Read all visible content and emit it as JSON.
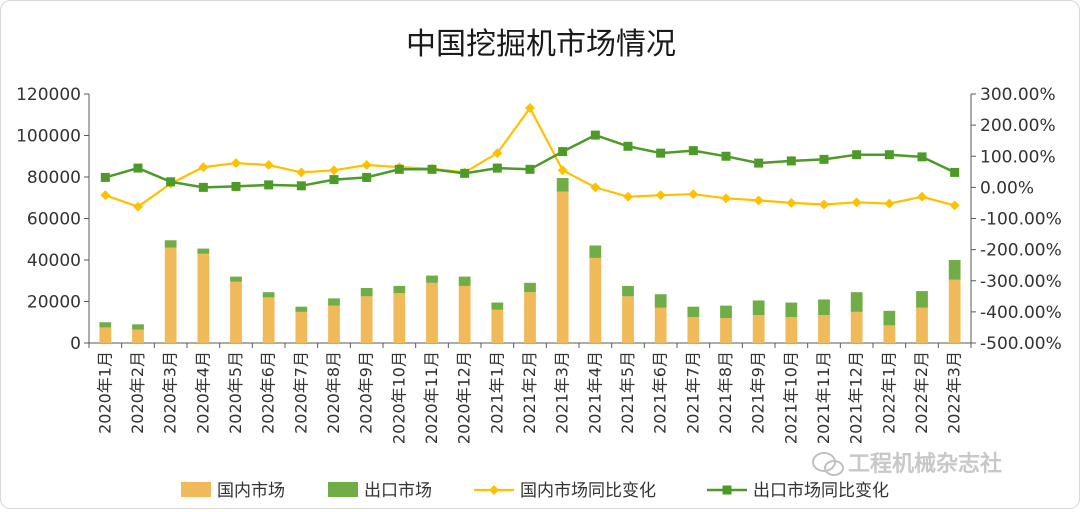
{
  "chart_data": {
    "type": "bar",
    "title": "中国挖掘机市场情况",
    "categories": [
      "2020年1月",
      "2020年2月",
      "2020年3月",
      "2020年4月",
      "2020年5月",
      "2020年6月",
      "2020年7月",
      "2020年8月",
      "2020年9月",
      "2020年10月",
      "2020年11月",
      "2020年12月",
      "2021年1月",
      "2021年2月",
      "2021年3月",
      "2021年4月",
      "2021年5月",
      "2021年6月",
      "2021年7月",
      "2021年8月",
      "2021年9月",
      "2021年10月",
      "2021年11月",
      "2021年12月",
      "2022年1月",
      "2022年2月",
      "2022年3月"
    ],
    "y_left": {
      "ylim": [
        0,
        120000
      ],
      "ticks": [
        "0",
        "20000",
        "40000",
        "60000",
        "80000",
        "100000",
        "120000"
      ]
    },
    "y_right": {
      "ylim": [
        -500,
        300
      ],
      "ticks": [
        "-500.00%",
        "-400.00%",
        "-300.00%",
        "-200.00%",
        "-100.00%",
        "0.00%",
        "100.00%",
        "200.00%",
        "300.00%"
      ]
    },
    "series": [
      {
        "name": "国内市场",
        "kind": "stacked-bar",
        "color": "#f0b95a",
        "values": [
          7500,
          6500,
          46000,
          43000,
          29500,
          22000,
          15000,
          18000,
          22500,
          24000,
          29000,
          27500,
          16000,
          24500,
          73000,
          41000,
          22500,
          17000,
          12500,
          12000,
          13500,
          12500,
          13500,
          15000,
          8500,
          17000,
          30500
        ]
      },
      {
        "name": "出口市场",
        "kind": "stacked-bar",
        "color": "#70ad47",
        "values": [
          2500,
          2500,
          3500,
          2500,
          2500,
          2500,
          2500,
          3500,
          4000,
          3500,
          3500,
          4500,
          3500,
          4500,
          6500,
          6000,
          5000,
          6500,
          5000,
          6000,
          7000,
          7000,
          7500,
          9500,
          7000,
          8000,
          9500
        ]
      },
      {
        "name": "国内市场同比变化",
        "kind": "line",
        "axis": "right",
        "color": "#ffc000",
        "values": [
          -25,
          -62,
          12,
          65,
          78,
          72,
          48,
          55,
          72,
          65,
          60,
          48,
          110,
          255,
          55,
          0,
          -30,
          -25,
          -22,
          -35,
          -42,
          -50,
          -55,
          -48,
          -52,
          -30,
          -58
        ]
      },
      {
        "name": "出口市场同比变化",
        "kind": "line",
        "axis": "right",
        "color": "#4e9a28",
        "values": [
          32,
          62,
          18,
          0,
          3,
          8,
          5,
          25,
          32,
          58,
          58,
          45,
          62,
          58,
          115,
          168,
          132,
          110,
          118,
          100,
          78,
          85,
          90,
          105,
          105,
          98,
          48
        ]
      }
    ],
    "legend_position": "bottom",
    "grid": false
  },
  "watermark": {
    "text": "工程机械杂志社"
  }
}
